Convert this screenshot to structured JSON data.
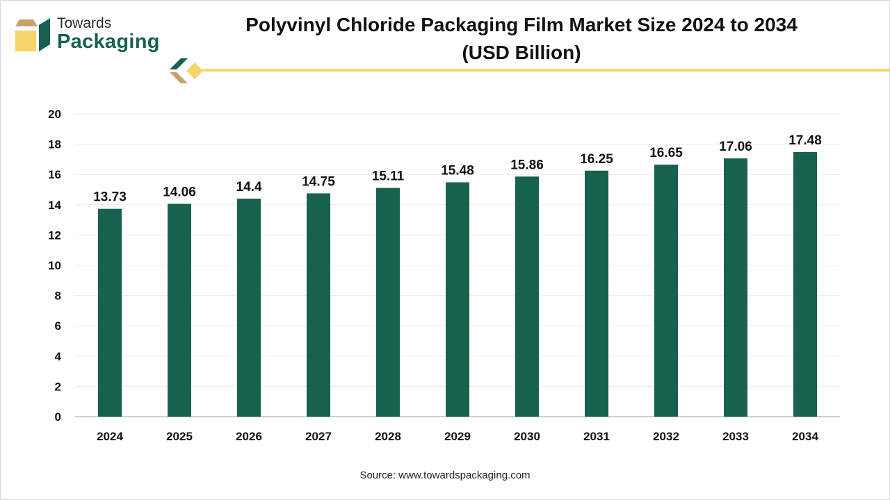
{
  "brand": {
    "line1": "Towards",
    "line2": "Packaging",
    "green": "#17614f",
    "gold": "#f5d66b",
    "tan": "#c7a36b"
  },
  "chart_data": {
    "type": "bar",
    "title": "Polyvinyl Chloride Packaging Film Market Size 2024 to 2034",
    "subtitle": "(USD Billion)",
    "categories": [
      "2024",
      "2025",
      "2026",
      "2027",
      "2028",
      "2029",
      "2030",
      "2031",
      "2032",
      "2033",
      "2034"
    ],
    "values": [
      13.73,
      14.06,
      14.4,
      14.75,
      15.11,
      15.48,
      15.86,
      16.25,
      16.65,
      17.06,
      17.48
    ],
    "value_labels": [
      "13.73",
      "14.06",
      "14.4",
      "14.75",
      "15.11",
      "15.48",
      "15.86",
      "16.25",
      "16.65",
      "17.06",
      "17.48"
    ],
    "ylim": [
      0,
      20
    ],
    "yticks": [
      "0",
      "2",
      "4",
      "6",
      "8",
      "10",
      "12",
      "14",
      "16",
      "18",
      "20"
    ],
    "xlabel": "",
    "ylabel": "",
    "grid": true,
    "legend": "none",
    "bar_color": "#17614f",
    "source": "Source: www.towardspackaging.com"
  }
}
